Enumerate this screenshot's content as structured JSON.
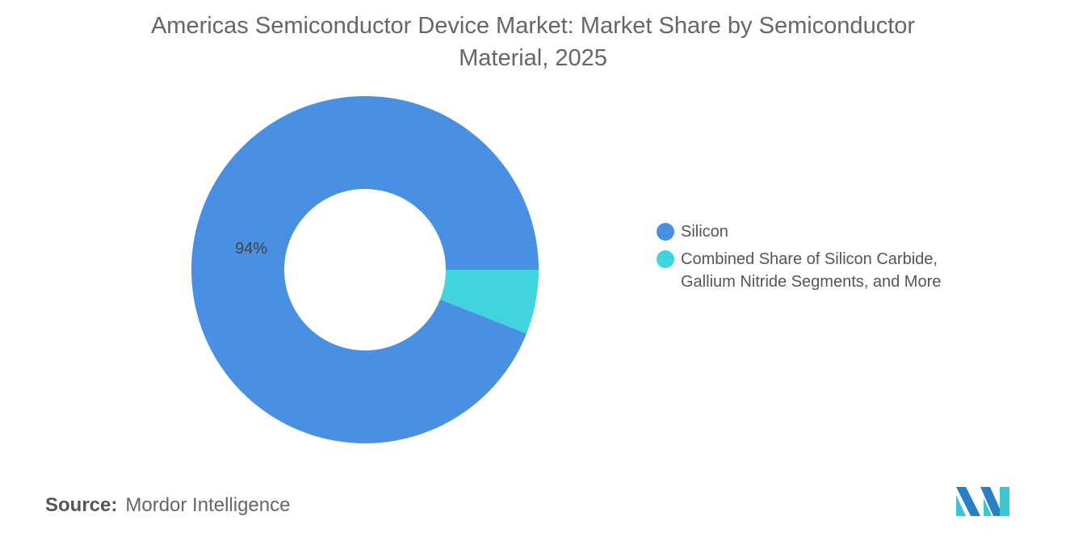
{
  "chart_data": {
    "type": "pie",
    "variant": "donut",
    "title": "Americas Semiconductor Device Market: Market Share by Semiconductor Material, 2025",
    "title_lines": [
      "Americas Semiconductor Device Market: Market Share by Semiconductor",
      "Material, 2025"
    ],
    "slices": [
      {
        "name": "Silicon",
        "value": 94,
        "label": "94%",
        "color": "#4a90e2"
      },
      {
        "name": "Combined Share of Silicon Carbide, Gallium Nitride Segments, and More",
        "value": 6,
        "label": "",
        "color": "#40d4dc"
      }
    ],
    "legend_lines": [
      [
        "Silicon"
      ],
      [
        "Combined Share of Silicon Carbide,",
        "Gallium Nitride Segments, and More"
      ]
    ],
    "legend_position": "right"
  },
  "source": {
    "label": "Source:",
    "value": "Mordor Intelligence"
  },
  "logo": {
    "colors": [
      "#2a7fc4",
      "#40c4d0"
    ]
  }
}
